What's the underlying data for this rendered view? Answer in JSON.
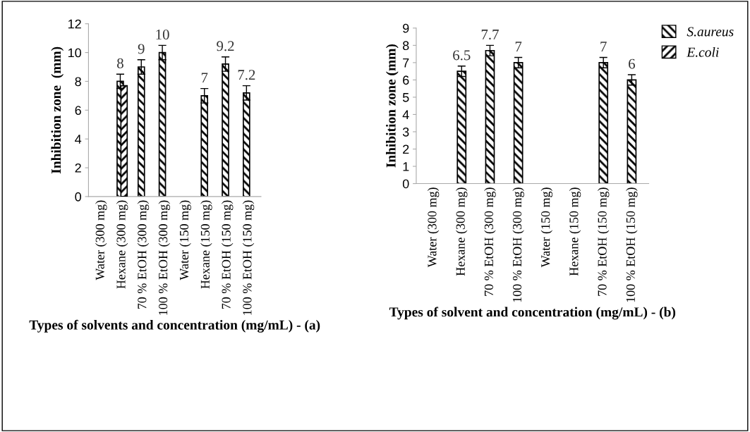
{
  "chart_data": [
    {
      "type": "bar",
      "xlabel": "Types of solvents and concentration (mg/mL) - (a)",
      "ylabel": "Inhibition zone  (mm)",
      "categories": [
        "Water (300 mg)",
        "Hexane (300 mg)",
        "70 % EtOH (300 mg)",
        "100 % EtOH (300 mg)",
        "Water (150 mg)",
        "Hexane (150 mg)",
        "70 % EtOH (150 mg)",
        "100 % EtOH (150 mg)"
      ],
      "series": [
        {
          "name": "S.aureus",
          "color": "#000000",
          "values": [
            null,
            8,
            9,
            10,
            null,
            7,
            9.2,
            7.2
          ],
          "errors": [
            null,
            0.5,
            0.5,
            0.5,
            null,
            0.5,
            0.5,
            0.5
          ],
          "value_labels": [
            null,
            "8",
            "9",
            "10",
            null,
            "7",
            "9.2",
            "7.2"
          ]
        },
        {
          "name": "E.coli",
          "color": "#000000",
          "values": [
            null,
            7.7,
            null,
            null,
            null,
            null,
            null,
            null
          ]
        }
      ],
      "ylim": [
        0,
        12
      ],
      "yticks": [
        0,
        2,
        4,
        6,
        8,
        10,
        12
      ],
      "legend": "right",
      "grid": false
    },
    {
      "type": "bar",
      "xlabel": "Types of solvent and concentration (mg/mL) - (b)",
      "ylabel": "Inhibition zone (mm)",
      "categories": [
        "Water (300 mg)",
        "Hexane (300 mg)",
        "70 % EtOH (300 mg)",
        "100 % EtOH (300 mg)",
        "Water (150 mg)",
        "Hexane (150 mg)",
        "70 % EtOH (150 mg)",
        "100 % EtOH (150 mg)"
      ],
      "series": [
        {
          "color": "#000000",
          "values": [
            null,
            6.5,
            7.7,
            7,
            null,
            null,
            7,
            6
          ],
          "errors": [
            null,
            0.3,
            0.3,
            0.3,
            null,
            null,
            0.3,
            0.3
          ]
        }
      ],
      "ylim": [
        0,
        9
      ],
      "yticks": [
        0,
        1,
        2,
        3,
        4,
        5,
        6,
        7,
        8,
        9
      ],
      "data_labels": true,
      "grid": false
    }
  ]
}
